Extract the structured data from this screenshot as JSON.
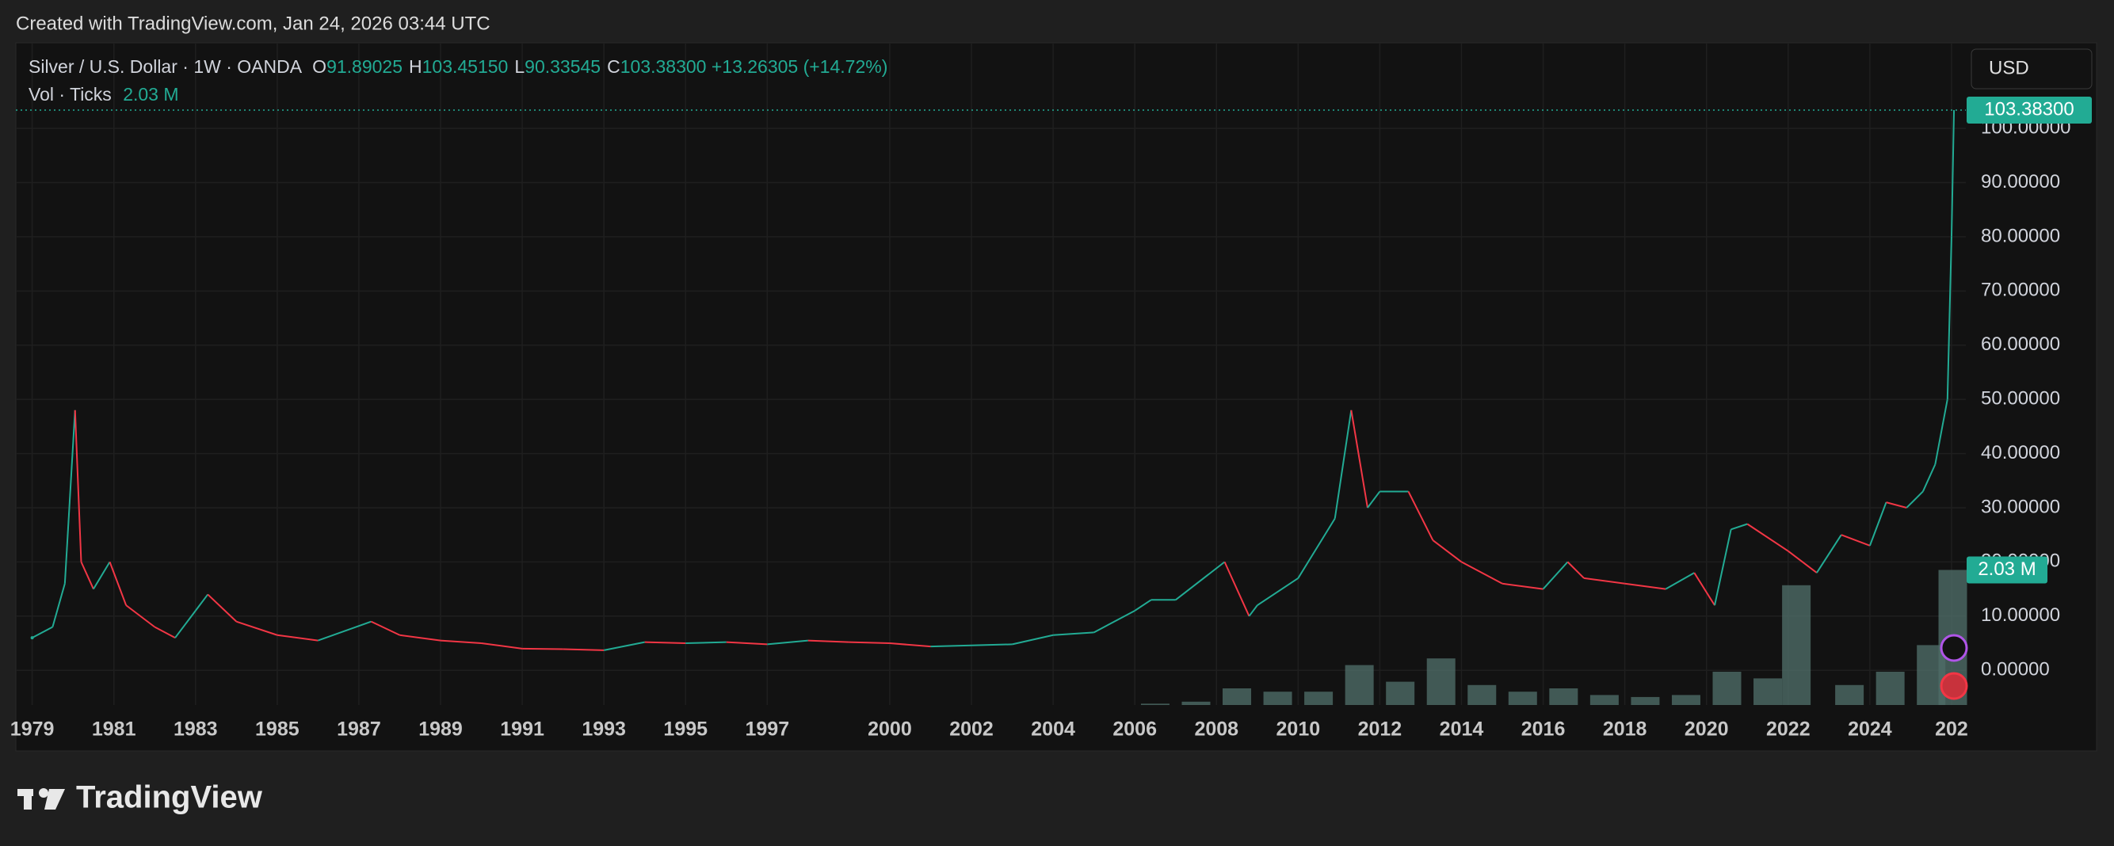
{
  "header": {
    "created": "Created with TradingView.com, Jan 24, 2026 03:44 UTC"
  },
  "legend": {
    "symbol": "Silver / U.S. Dollar · 1W · OANDA",
    "ohlc": [
      {
        "key": "O",
        "value": "91.89025"
      },
      {
        "key": "H",
        "value": "103.45150"
      },
      {
        "key": "L",
        "value": "90.33545"
      },
      {
        "key": "C",
        "value": "103.38300"
      }
    ],
    "change": "+13.26305 (+14.72%)",
    "volume_name": "Vol · Ticks"
  },
  "currency": "USD",
  "logo": "TradingView",
  "chart_data": {
    "type": "line",
    "up_color": "#22ab94",
    "down_color": "#f23645",
    "grid": true,
    "xlim": [
      1978.6,
      2026.35
    ],
    "ylim": [
      -6.4,
      115.8
    ],
    "xticks": [
      1979,
      1981,
      1983,
      1985,
      1987,
      1989,
      1991,
      1993,
      1995,
      1997,
      2000,
      2002,
      2004,
      2006,
      2008,
      2010,
      2012,
      2014,
      2016,
      2018,
      2020,
      2022,
      2024,
      {
        "value": 2026,
        "label": "202"
      }
    ],
    "yticks": [
      {
        "value": 0,
        "label": "0.00000"
      },
      {
        "value": 10,
        "label": "10.00000"
      },
      {
        "value": 20,
        "label": "20.00000"
      },
      {
        "value": 30,
        "label": "30.00000"
      },
      {
        "value": 40,
        "label": "40.00000"
      },
      {
        "value": 50,
        "label": "50.00000"
      },
      {
        "value": 60,
        "label": "60.00000"
      },
      {
        "value": 70,
        "label": "70.00000"
      },
      {
        "value": 80,
        "label": "80.00000"
      },
      {
        "value": 90,
        "label": "90.00000"
      },
      {
        "value": 100,
        "label": "100.00000"
      }
    ],
    "series": [
      {
        "name": "Silver / U.S. Dollar",
        "x": [
          1979.0,
          1979.5,
          1979.8,
          1980.05,
          1980.2,
          1980.5,
          1980.9,
          1981.3,
          1982.0,
          1982.5,
          1983.0,
          1983.3,
          1984.0,
          1985.0,
          1986.0,
          1987.3,
          1988.0,
          1989.0,
          1990.0,
          1991.0,
          1992.0,
          1993.0,
          1994.0,
          1995.0,
          1996.0,
          1997.0,
          1998.0,
          1999.0,
          2000.0,
          2001.0,
          2002.0,
          2003.0,
          2004.0,
          2005.0,
          2006.0,
          2006.4,
          2007.0,
          2008.2,
          2008.8,
          2009.0,
          2010.0,
          2010.9,
          2011.3,
          2011.7,
          2012.0,
          2012.7,
          2013.3,
          2014.0,
          2015.0,
          2016.0,
          2016.6,
          2017.0,
          2018.0,
          2019.0,
          2019.7,
          2020.2,
          2020.6,
          2021.0,
          2022.0,
          2022.7,
          2023.3,
          2024.0,
          2024.4,
          2024.9,
          2025.3,
          2025.6,
          2025.9,
          2026.0,
          2026.06
        ],
        "values": [
          6,
          8,
          16,
          48,
          20,
          15,
          20,
          12,
          8,
          6,
          11,
          14,
          9,
          6.5,
          5.5,
          9,
          6.5,
          5.5,
          5,
          4,
          3.9,
          3.7,
          5.2,
          5,
          5.2,
          4.8,
          5.5,
          5.2,
          5,
          4.4,
          4.6,
          4.8,
          6.5,
          7,
          11,
          13,
          13,
          20,
          10,
          12,
          17,
          28,
          48,
          30,
          33,
          33,
          24,
          20,
          16,
          15,
          20,
          17,
          16,
          15,
          18,
          12,
          26,
          27,
          22,
          18,
          25,
          23,
          31,
          30,
          33,
          38,
          50,
          80,
          103.383
        ]
      }
    ],
    "volume": {
      "name": "Vol · Ticks",
      "color": "#4d6b67",
      "x": [
        2006.5,
        2007.5,
        2008.5,
        2009.5,
        2010.5,
        2011.5,
        2012.5,
        2013.5,
        2014.5,
        2015.5,
        2016.5,
        2017.5,
        2018.5,
        2019.5,
        2020.5,
        2021.5,
        2022.2,
        2023.5,
        2024.5,
        2025.5,
        2026.03
      ],
      "values": [
        0.02,
        0.05,
        0.25,
        0.2,
        0.2,
        0.6,
        0.35,
        0.7,
        0.3,
        0.2,
        0.25,
        0.15,
        0.12,
        0.15,
        0.5,
        0.4,
        1.8,
        0.3,
        0.5,
        0.9,
        2.03
      ]
    },
    "last_price": {
      "value": 103.383,
      "label": "103.38300"
    },
    "last_volume": {
      "value": 2.03,
      "label": "2.03 M"
    }
  }
}
